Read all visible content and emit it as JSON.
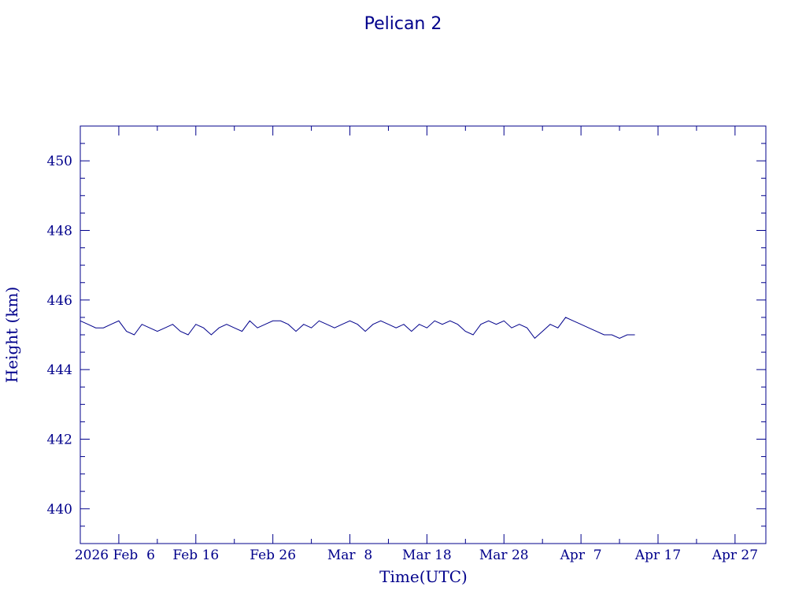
{
  "chart_data": {
    "type": "line",
    "title": "Pelican 2",
    "xlabel": "Time(UTC)",
    "ylabel": "Height (km)",
    "ylim": [
      439,
      451
    ],
    "yticks_major": [
      440,
      442,
      444,
      446,
      448,
      450
    ],
    "xlim": [
      "2026-02-01",
      "2026-05-01"
    ],
    "xticks": [
      {
        "date": "2026-02-06",
        "label": "2026 Feb  6"
      },
      {
        "date": "2026-02-16",
        "label": "Feb 16"
      },
      {
        "date": "2026-02-26",
        "label": "Feb 26"
      },
      {
        "date": "2026-03-08",
        "label": "Mar  8"
      },
      {
        "date": "2026-03-18",
        "label": "Mar 18"
      },
      {
        "date": "2026-03-28",
        "label": "Mar 28"
      },
      {
        "date": "2026-04-07",
        "label": "Apr  7"
      },
      {
        "date": "2026-04-17",
        "label": "Apr 17"
      },
      {
        "date": "2026-04-27",
        "label": "Apr 27"
      }
    ],
    "grid": false,
    "color": "#00008b",
    "series": [
      {
        "x": [
          "2026-02-01",
          "2026-02-02",
          "2026-02-03",
          "2026-02-04",
          "2026-02-05",
          "2026-02-06",
          "2026-02-07",
          "2026-02-08",
          "2026-02-09",
          "2026-02-10",
          "2026-02-11",
          "2026-02-12",
          "2026-02-13",
          "2026-02-14",
          "2026-02-15",
          "2026-02-16",
          "2026-02-17",
          "2026-02-18",
          "2026-02-19",
          "2026-02-20",
          "2026-02-21",
          "2026-02-22",
          "2026-02-23",
          "2026-02-24",
          "2026-02-25",
          "2026-02-26",
          "2026-02-27",
          "2026-02-28",
          "2026-03-01",
          "2026-03-02",
          "2026-03-03",
          "2026-03-04",
          "2026-03-05",
          "2026-03-06",
          "2026-03-07",
          "2026-03-08",
          "2026-03-09",
          "2026-03-10",
          "2026-03-11",
          "2026-03-12",
          "2026-03-13",
          "2026-03-14",
          "2026-03-15",
          "2026-03-16",
          "2026-03-17",
          "2026-03-18",
          "2026-03-19",
          "2026-03-20",
          "2026-03-21",
          "2026-03-22",
          "2026-03-23",
          "2026-03-24",
          "2026-03-25",
          "2026-03-26",
          "2026-03-27",
          "2026-03-28",
          "2026-03-29",
          "2026-03-30",
          "2026-03-31",
          "2026-04-01",
          "2026-04-02",
          "2026-04-03",
          "2026-04-04",
          "2026-04-05",
          "2026-04-06",
          "2026-04-07",
          "2026-04-08",
          "2026-04-09",
          "2026-04-10",
          "2026-04-11",
          "2026-04-12",
          "2026-04-13",
          "2026-04-14"
        ],
        "values": [
          445.4,
          445.3,
          445.2,
          445.2,
          445.3,
          445.4,
          445.1,
          445.0,
          445.3,
          445.2,
          445.1,
          445.2,
          445.3,
          445.1,
          445.0,
          445.3,
          445.2,
          445.0,
          445.2,
          445.3,
          445.2,
          445.1,
          445.4,
          445.2,
          445.3,
          445.4,
          445.4,
          445.3,
          445.1,
          445.3,
          445.2,
          445.4,
          445.3,
          445.2,
          445.3,
          445.4,
          445.3,
          445.1,
          445.3,
          445.4,
          445.3,
          445.2,
          445.3,
          445.1,
          445.3,
          445.2,
          445.4,
          445.3,
          445.4,
          445.3,
          445.1,
          445.0,
          445.3,
          445.4,
          445.3,
          445.4,
          445.2,
          445.3,
          445.2,
          444.9,
          445.1,
          445.3,
          445.2,
          445.5,
          445.4,
          445.3,
          445.2,
          445.1,
          445.0,
          445.0,
          444.9,
          445.0,
          445.0
        ]
      }
    ]
  }
}
